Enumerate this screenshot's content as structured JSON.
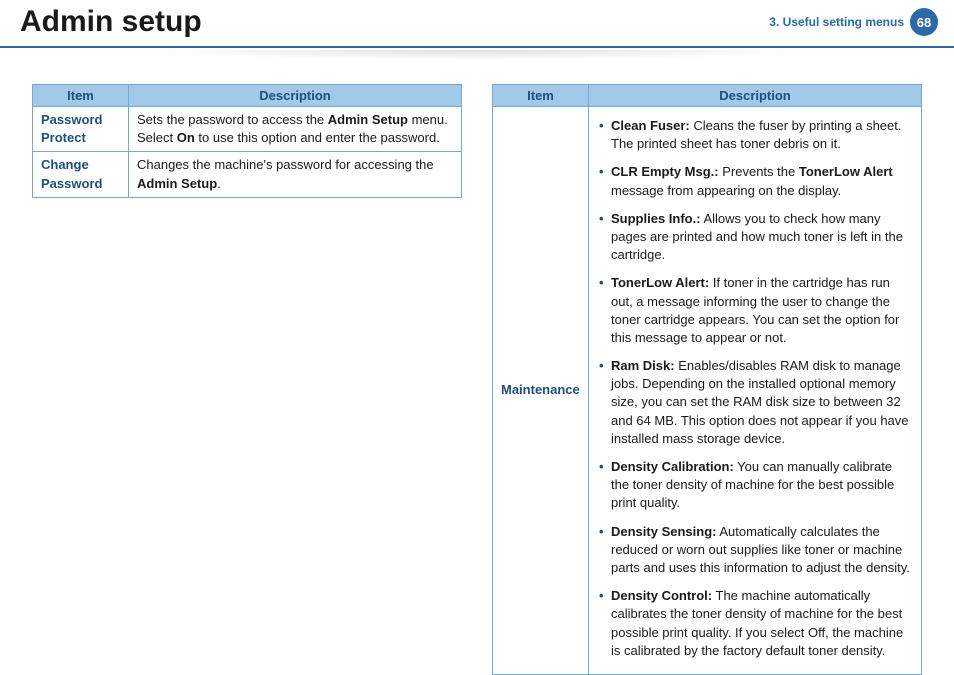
{
  "header": {
    "title": "Admin setup",
    "chapter": "3.  Useful setting menus",
    "page_number": "68"
  },
  "tables": {
    "headers": {
      "item": "Item",
      "description": "Description"
    },
    "left": [
      {
        "item": "Password Protect",
        "desc_html": "Sets the password to access the <span class='b'>Admin Setup</span> menu.<br>Select <span class='b'>On</span> to use this option and enter the password."
      },
      {
        "item": "Change Password",
        "desc_html": "Changes the machine's password for accessing the <span class='b'>Admin Setup</span>."
      }
    ],
    "right": [
      {
        "item": "Maintenance",
        "bullets": [
          {
            "label": "Clean Fuser:",
            "text": " Cleans the fuser by printing a sheet. The printed sheet has toner debris on it."
          },
          {
            "label": "CLR Empty Msg.:",
            "text": " Prevents the <span class='b'>TonerLow Alert</span> message from appearing on the display."
          },
          {
            "label": "Supplies Info.:",
            "text": " Allows you to check how many pages are printed and how much toner is left in the cartridge."
          },
          {
            "label": "TonerLow Alert:",
            "text": " If toner in the cartridge has run out, a message informing the user to change the toner cartridge appears. You can set the option for this message to appear or not."
          },
          {
            "label": "Ram Disk:",
            "text": " Enables/disables RAM disk to manage jobs. Depending on the installed optional memory size, you can set the RAM disk size to between 32 and 64 MB. This option does not appear if you have installed mass storage device."
          },
          {
            "label": "Density Calibration:",
            "text": " You can manually calibrate the toner density of machine for the best possible print quality."
          },
          {
            "label": "Density Sensing:",
            "text": " Automatically calculates the reduced or worn out supplies like toner or machine parts and uses this information to adjust the density."
          },
          {
            "label": "Density Control:",
            "text": " The machine automatically calibrates the toner density of machine for the best possible print quality. If you select Off, the machine is calibrated by the factory default toner density."
          }
        ]
      }
    ]
  }
}
